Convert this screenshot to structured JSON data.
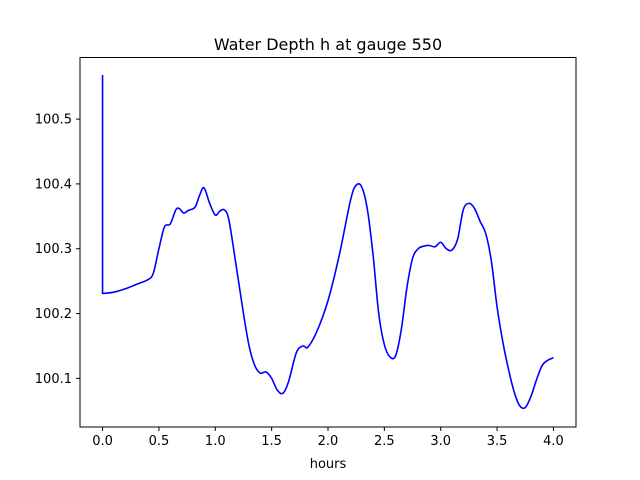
{
  "chart_data": {
    "type": "line",
    "title": "Water Depth h at gauge 550",
    "xlabel": "hours",
    "ylabel": "",
    "xlim": [
      -0.2,
      4.2
    ],
    "ylim": [
      100.025,
      100.595
    ],
    "xticks": [
      0.0,
      0.5,
      1.0,
      1.5,
      2.0,
      2.5,
      3.0,
      3.5,
      4.0
    ],
    "xtick_labels": [
      "0.0",
      "0.5",
      "1.0",
      "1.5",
      "2.0",
      "2.5",
      "3.0",
      "3.5",
      "4.0"
    ],
    "yticks": [
      100.1,
      100.2,
      100.3,
      100.4,
      100.5
    ],
    "ytick_labels": [
      "100.1",
      "100.2",
      "100.3",
      "100.4",
      "100.5"
    ],
    "grid": false,
    "series": [
      {
        "color": "#0000ff",
        "x": [
          0.0,
          0.0,
          0.0,
          0.1,
          0.2,
          0.3,
          0.4,
          0.45,
          0.5,
          0.55,
          0.6,
          0.65,
          0.68,
          0.72,
          0.76,
          0.82,
          0.86,
          0.9,
          0.95,
          1.0,
          1.04,
          1.08,
          1.12,
          1.18,
          1.25,
          1.3,
          1.35,
          1.4,
          1.45,
          1.5,
          1.55,
          1.6,
          1.65,
          1.72,
          1.78,
          1.82,
          1.9,
          2.0,
          2.1,
          2.2,
          2.25,
          2.3,
          2.35,
          2.4,
          2.45,
          2.5,
          2.55,
          2.6,
          2.65,
          2.7,
          2.75,
          2.8,
          2.85,
          2.9,
          2.95,
          3.0,
          3.05,
          3.1,
          3.15,
          3.2,
          3.25,
          3.3,
          3.35,
          3.4,
          3.45,
          3.5,
          3.55,
          3.6,
          3.65,
          3.7,
          3.75,
          3.8,
          3.85,
          3.9,
          3.95,
          4.0
        ],
        "y": [
          100.568,
          100.231,
          100.231,
          100.233,
          100.238,
          100.245,
          100.252,
          100.262,
          100.3,
          100.334,
          100.338,
          100.36,
          100.362,
          100.355,
          100.359,
          100.364,
          100.382,
          100.394,
          100.37,
          100.352,
          100.358,
          100.36,
          100.345,
          100.28,
          100.2,
          100.15,
          100.12,
          100.108,
          100.11,
          100.1,
          100.082,
          100.077,
          100.095,
          100.14,
          100.15,
          100.148,
          100.172,
          100.22,
          100.29,
          100.375,
          100.398,
          100.395,
          100.36,
          100.29,
          100.2,
          100.152,
          100.133,
          100.135,
          100.175,
          100.24,
          100.285,
          100.3,
          100.304,
          100.305,
          100.303,
          100.31,
          100.3,
          100.298,
          100.315,
          100.36,
          100.37,
          100.362,
          100.342,
          100.323,
          100.28,
          100.21,
          100.157,
          100.115,
          100.08,
          100.058,
          100.055,
          100.072,
          100.098,
          100.12,
          100.128,
          100.132
        ]
      }
    ]
  }
}
